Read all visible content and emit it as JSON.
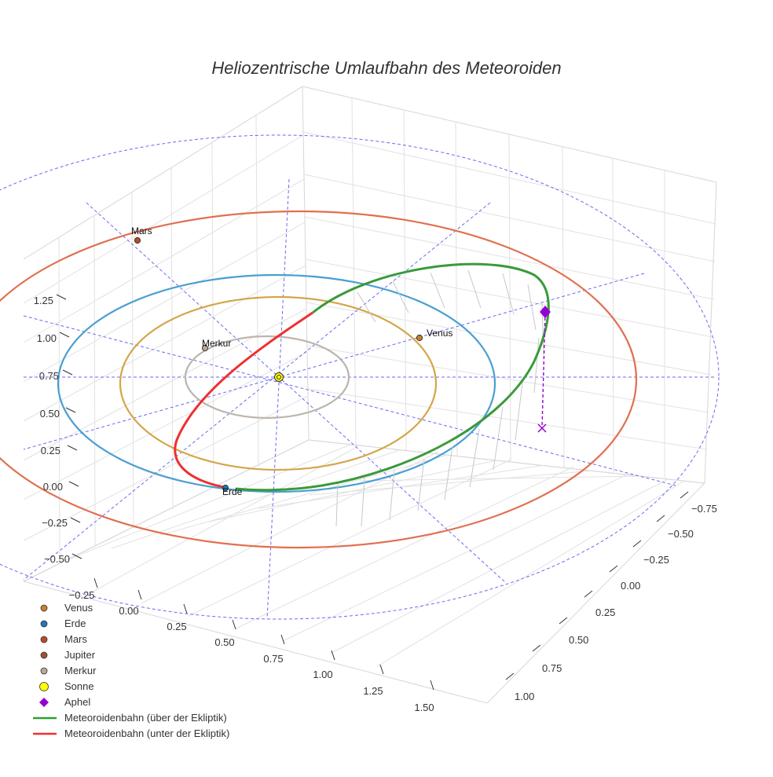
{
  "chart_data": {
    "type": "scatter3d",
    "title": "Heliozentrische Umlaufbahn des Meteoroiden",
    "axes": {
      "x": {
        "ticks": [
          "−0.25",
          "0.00",
          "0.25",
          "0.50",
          "0.75",
          "1.00",
          "1.25",
          "1.50"
        ]
      },
      "y": {
        "ticks": [
          "−0.75",
          "−0.50",
          "−0.25",
          "0.00",
          "0.25",
          "0.50",
          "0.75",
          "1.00"
        ]
      },
      "z": {
        "ticks": [
          "−0.50",
          "−0.25",
          "0.00",
          "0.25",
          "0.50",
          "0.75",
          "1.00",
          "1.25"
        ]
      },
      "grid": true
    },
    "orbits": [
      {
        "body": "Merkur",
        "color": "#bdb5ad"
      },
      {
        "body": "Venus",
        "color": "#d4a548"
      },
      {
        "body": "Erde",
        "color": "#4a9fd0"
      },
      {
        "body": "Mars",
        "color": "#e07050"
      }
    ],
    "ecliptic_reference": {
      "color": "#6a6af0",
      "style": "dashed"
    },
    "bodies": [
      {
        "name": "Venus",
        "label": "Venus",
        "color": "#c8802a"
      },
      {
        "name": "Erde",
        "label": "Erde",
        "color": "#1f77b4"
      },
      {
        "name": "Mars",
        "label": "Mars",
        "color": "#c04a1f"
      },
      {
        "name": "Jupiter",
        "label": "",
        "color": "#a0522d"
      },
      {
        "name": "Merkur",
        "label": "Merkur",
        "color": "#b8a89a"
      },
      {
        "name": "Sonne",
        "label": "",
        "color": "#ffff00"
      },
      {
        "name": "Aphel",
        "label": "",
        "color": "#9400d3"
      }
    ],
    "meteoroid": {
      "above_ecliptic_color": "#2ca02c",
      "below_ecliptic_color": "#ee3030"
    },
    "legend": {
      "placement": "bottom-left",
      "items": [
        {
          "label": "Venus",
          "symbol": "circle",
          "color": "#c8802a"
        },
        {
          "label": "Erde",
          "symbol": "circle",
          "color": "#1f77b4"
        },
        {
          "label": "Mars",
          "symbol": "circle",
          "color": "#c04a1f"
        },
        {
          "label": "Jupiter",
          "symbol": "circle",
          "color": "#a0522d"
        },
        {
          "label": "Merkur",
          "symbol": "circle",
          "color": "#b8a89a"
        },
        {
          "label": "Sonne",
          "symbol": "circle-large",
          "color": "#ffff00"
        },
        {
          "label": "Aphel",
          "symbol": "diamond",
          "color": "#9400d3"
        },
        {
          "label": "Meteoroidenbahn (über der Ekliptik)",
          "symbol": "line",
          "color": "#2ca02c"
        },
        {
          "label": "Meteoroidenbahn (unter der Ekliptik)",
          "symbol": "line",
          "color": "#ee3030"
        }
      ]
    }
  }
}
